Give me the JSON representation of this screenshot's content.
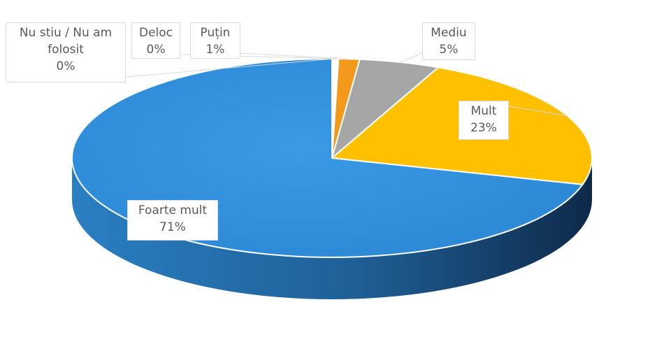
{
  "chart_data": {
    "type": "pie",
    "title": "",
    "style": "3d",
    "slices": [
      {
        "label": "Nu stiu / Nu am folosit",
        "label_lines": [
          "Nu stiu / Nu am",
          "folosit"
        ],
        "value": 0.2,
        "percent_label": "0%",
        "color": "#ffffff"
      },
      {
        "label": "Deloc",
        "label_lines": [
          "Deloc"
        ],
        "value": 0.2,
        "percent_label": "0%",
        "color": "#ffffff"
      },
      {
        "label": "Puțin",
        "label_lines": [
          "Puțin"
        ],
        "value": 1.3,
        "percent_label": "1%",
        "color": "#f39a1c"
      },
      {
        "label": "Mediu",
        "label_lines": [
          "Mediu"
        ],
        "value": 5.0,
        "percent_label": "5%",
        "color": "#a6a6a6"
      },
      {
        "label": "Mult",
        "label_lines": [
          "Mult"
        ],
        "value": 22.6,
        "percent_label": "23%",
        "color": "#ffc000"
      },
      {
        "label": "Foarte mult",
        "label_lines": [
          "Foarte mult"
        ],
        "value": 70.7,
        "percent_label": "71%",
        "color": "#2e8fd9"
      }
    ],
    "legend": "none"
  }
}
